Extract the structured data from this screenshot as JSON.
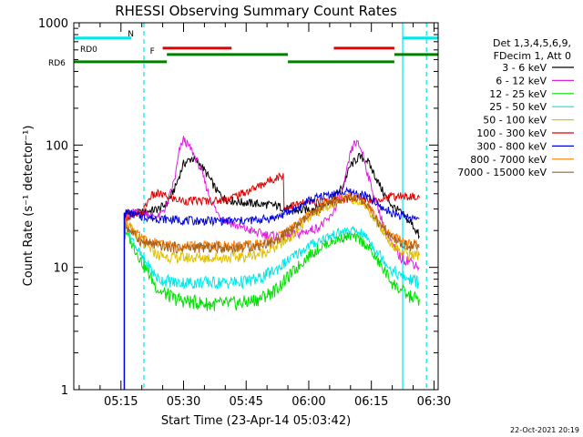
{
  "chart_data": {
    "type": "line",
    "title": "RHESSI Observing Summary Count Rates",
    "xlabel": "Start Time (23-Apr-14 05:03:42)",
    "ylabel": "Count Rate (s⁻¹ detector⁻¹)",
    "xrange_minutes_after_0500": [
      3.7,
      91.0
    ],
    "yrange": [
      1,
      1000
    ],
    "yscale": "log",
    "x_ticks": [
      {
        "label": "05:15",
        "minutes": 15
      },
      {
        "label": "05:30",
        "minutes": 30
      },
      {
        "label": "05:45",
        "minutes": 45
      },
      {
        "label": "06:00",
        "minutes": 60
      },
      {
        "label": "06:15",
        "minutes": 75
      },
      {
        "label": "06:30",
        "minutes": 90
      }
    ],
    "y_ticks": [
      {
        "label": "1",
        "value": 1
      },
      {
        "label": "10",
        "value": 10
      },
      {
        "label": "100",
        "value": 100
      },
      {
        "label": "1000",
        "value": 1000
      }
    ],
    "legend": {
      "header": [
        "Det 1,3,4,5,6,9,",
        "FDecim 1, Att 0"
      ],
      "placement": "right"
    },
    "series": [
      {
        "name": "3 - 6 keV",
        "color": "#000000",
        "x": [
          16,
          20,
          22,
          24,
          26,
          28,
          30,
          32,
          34,
          36,
          38,
          40,
          44,
          48,
          52,
          55,
          58,
          62,
          65,
          68,
          70,
          72,
          74,
          76,
          78,
          80,
          82,
          85,
          86.5
        ],
        "y": [
          28,
          28,
          29,
          30,
          33,
          45,
          70,
          78,
          70,
          55,
          42,
          36,
          34,
          33,
          32,
          30,
          29,
          31,
          34,
          45,
          68,
          80,
          75,
          55,
          40,
          32,
          28,
          22,
          18
        ]
      },
      {
        "name": "6 - 12 keV",
        "color": "#e020e0",
        "x": [
          16,
          20,
          22,
          24,
          26,
          28,
          29,
          30,
          31,
          32,
          34,
          36,
          38,
          40,
          44,
          48,
          52,
          55,
          58,
          62,
          65,
          68,
          70,
          71,
          72,
          73,
          74,
          76,
          78,
          80,
          82,
          85,
          86.5
        ],
        "y": [
          28,
          28,
          27,
          26,
          32,
          55,
          90,
          112,
          100,
          90,
          65,
          40,
          28,
          24,
          21,
          19,
          18,
          18,
          19,
          21,
          25,
          40,
          85,
          105,
          100,
          85,
          60,
          35,
          22,
          15,
          12,
          11,
          10
        ]
      },
      {
        "name": "12 - 25 keV",
        "color": "#00e000",
        "x": [
          16,
          20,
          24,
          28,
          32,
          36,
          40,
          44,
          48,
          52,
          56,
          60,
          64,
          68,
          70,
          72,
          74,
          76,
          78,
          80,
          82,
          84,
          86.5
        ],
        "y": [
          20,
          11,
          6.5,
          5.5,
          5.2,
          5.0,
          5.0,
          5.1,
          5.5,
          6.5,
          9.0,
          12.5,
          15.5,
          17.5,
          18.0,
          17.0,
          15.0,
          12.0,
          9.5,
          7.5,
          6.5,
          5.8,
          5.5
        ]
      },
      {
        "name": "25 - 50 keV",
        "color": "#00e8e8",
        "x": [
          16,
          20,
          24,
          28,
          32,
          36,
          40,
          44,
          48,
          52,
          56,
          60,
          64,
          68,
          70,
          72,
          74,
          76,
          78,
          80,
          82,
          84,
          86.5
        ],
        "y": [
          22,
          12,
          8.0,
          7.5,
          7.5,
          7.5,
          7.5,
          7.6,
          8.0,
          9.5,
          12,
          15,
          17.5,
          19.5,
          20.0,
          19.5,
          17.5,
          14,
          11.5,
          9.5,
          8.5,
          8.0,
          7.5
        ]
      },
      {
        "name": "50 - 100 keV",
        "color": "#e0c000",
        "x": [
          16,
          20,
          24,
          28,
          32,
          36,
          40,
          44,
          48,
          52,
          56,
          60,
          64,
          68,
          70,
          72,
          74,
          76,
          78,
          80,
          82,
          84,
          86.5
        ],
        "y": [
          24,
          16,
          12.5,
          12,
          12,
          12,
          12,
          12.2,
          12.8,
          14.5,
          18,
          25,
          31,
          35,
          36,
          35,
          31,
          24,
          19,
          15.5,
          13.5,
          12.8,
          12.5
        ]
      },
      {
        "name": "100 - 300 keV",
        "color": "#e00000",
        "x": [
          16,
          20,
          22,
          24,
          26,
          28,
          30,
          32,
          34,
          36,
          38,
          40,
          42,
          44,
          46,
          48,
          50,
          52,
          53.9,
          54.1,
          56,
          60,
          64,
          68,
          72,
          76,
          80,
          82,
          84,
          86.5
        ],
        "y": [
          26,
          27,
          38,
          40,
          38,
          36,
          35,
          35,
          35,
          35,
          35,
          36,
          38,
          40,
          43,
          46,
          50,
          54,
          57,
          30,
          32,
          34,
          35,
          36,
          37,
          36,
          38,
          38,
          38,
          37
        ]
      },
      {
        "name": "300 - 800 keV",
        "color": "#0000dd",
        "x": [
          16,
          20,
          24,
          28,
          32,
          36,
          40,
          44,
          48,
          52,
          56,
          60,
          64,
          68,
          70,
          72,
          74,
          76,
          78,
          80,
          82,
          84,
          86.5
        ],
        "y": [
          28,
          26,
          25,
          24.5,
          24,
          24,
          24,
          24,
          24.5,
          25.5,
          29,
          35,
          39,
          41,
          41,
          40,
          38,
          33,
          30,
          28,
          26.5,
          25.5,
          25
        ]
      },
      {
        "name": "800 - 7000 keV",
        "color": "#ff7f00",
        "x": [
          16,
          20,
          24,
          28,
          32,
          36,
          40,
          44,
          48,
          52,
          56,
          60,
          64,
          68,
          70,
          72,
          74,
          76,
          78,
          80,
          82,
          84,
          86.5
        ],
        "y": [
          24,
          17,
          15.5,
          15,
          15,
          15,
          15,
          15,
          15.5,
          17,
          21,
          27,
          33,
          37,
          38,
          37,
          33,
          26,
          21,
          18,
          16.5,
          15.5,
          15
        ]
      },
      {
        "name": "7000 - 15000 keV",
        "color": "#a06020",
        "x": [
          16,
          20,
          24,
          28,
          32,
          36,
          40,
          44,
          48,
          52,
          56,
          60,
          64,
          68,
          70,
          72,
          74,
          76,
          78,
          80,
          82,
          84,
          86.5
        ],
        "y": [
          22,
          16,
          15,
          14.5,
          14.5,
          14.5,
          14.5,
          14.5,
          15,
          16.5,
          20.5,
          26,
          32,
          36,
          37,
          36,
          32,
          25,
          20,
          17,
          15.5,
          15,
          14.5
        ]
      }
    ],
    "spikes": [
      {
        "color": "#0000dd",
        "x": 15.8,
        "y_from": 1,
        "y_to": 28
      }
    ],
    "flag_bars": [
      {
        "label": "N",
        "color": "#00e8e8",
        "y_value": 750,
        "segments": [
          [
            3.7,
            17.5
          ],
          [
            82.5,
            91.0
          ]
        ]
      },
      {
        "label": "F",
        "color": "#e00000",
        "y_value": 620,
        "segments": [
          [
            25,
            41.5
          ],
          [
            66,
            80.5
          ]
        ]
      },
      {
        "label": "RD0",
        "color": "#008000",
        "y_value": 550,
        "segments": [
          [
            26,
            55
          ],
          [
            80.5,
            91.0
          ]
        ]
      },
      {
        "label": "RD6",
        "color": "#008000",
        "y_value": 480,
        "segments": [
          [
            3.7,
            26
          ],
          [
            55,
            80.5
          ]
        ]
      }
    ],
    "vlines": [
      {
        "style": "dashed",
        "color": "#00e8e8",
        "x": 20.5
      },
      {
        "style": "solid",
        "color": "#00e8e8",
        "x": 82.5
      },
      {
        "style": "dashed",
        "color": "#00e8e8",
        "x": 88.2
      }
    ],
    "timestamp": "22-Oct-2021 20:19"
  }
}
